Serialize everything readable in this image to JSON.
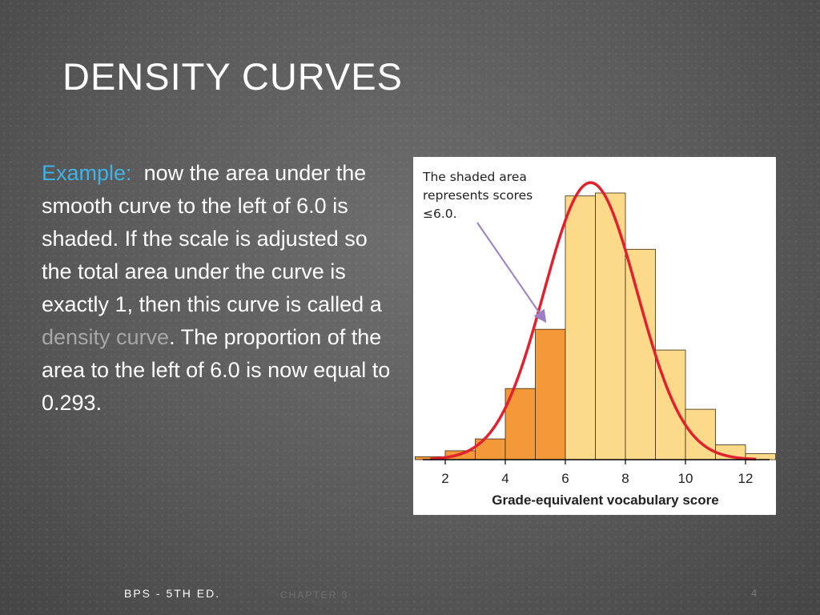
{
  "slide": {
    "title": "DENSITY CURVES",
    "example_label": "Example:",
    "text_before": "now the area under the smooth curve to the left of 6.0 is shaded.  If the scale is adjusted so the total area under the curve is exactly 1, then this curve is called a",
    "term": "density curve",
    "text_after": ".  The proportion of the area to the left of 6.0 is now equal to 0.293.",
    "accent_color": "#3fb2e6",
    "term_color": "#a7a7a7"
  },
  "footer": {
    "left": "BPS - 5TH ED.",
    "middle": "CHAPTER 3",
    "page": "4"
  },
  "chart_data": {
    "type": "bar",
    "subtype": "histogram with density curve",
    "annotation": "The shaded area represents scores ≤6.0.",
    "annotation_lines": [
      "The shaded area",
      "represents scores",
      "≤6.0."
    ],
    "xlabel": "Grade-equivalent vocabulary score",
    "xticks": [
      2,
      4,
      6,
      8,
      10,
      12
    ],
    "xlim": [
      1.2,
      12.8
    ],
    "ylim": [
      0,
      1.0
    ],
    "bin_width": 1,
    "shaded_cutoff": 6.0,
    "bins": [
      {
        "start": 1,
        "value": 0.01
      },
      {
        "start": 2,
        "value": 0.03
      },
      {
        "start": 3,
        "value": 0.07
      },
      {
        "start": 4,
        "value": 0.24
      },
      {
        "start": 5,
        "value": 0.44
      },
      {
        "start": 6,
        "value": 0.89
      },
      {
        "start": 7,
        "value": 0.9
      },
      {
        "start": 8,
        "value": 0.71
      },
      {
        "start": 9,
        "value": 0.37
      },
      {
        "start": 10,
        "value": 0.17
      },
      {
        "start": 11,
        "value": 0.05
      },
      {
        "start": 12,
        "value": 0.02
      }
    ],
    "curve": {
      "mean": 6.84,
      "sd": 1.55,
      "peak": 0.935
    },
    "colors": {
      "shaded_bar": "#f4993a",
      "unshaded_bar": "#fdd98a",
      "bar_edge": "#3a2a10",
      "curve": "#e2212e",
      "arrow": "#9b7fc5"
    }
  }
}
